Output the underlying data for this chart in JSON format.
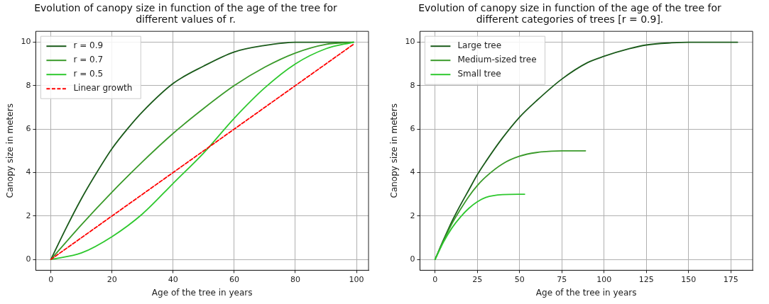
{
  "chart_data": [
    {
      "type": "line",
      "title": "Evolution of canopy size in function of the age of the tree for different values of r.",
      "xlabel": "Age of the tree in years",
      "ylabel": "Canopy size in meters",
      "xlim": [
        -4.95,
        103.95
      ],
      "xticks": [
        0,
        20,
        40,
        60,
        80,
        100
      ],
      "ylim": [
        -0.5,
        10.5
      ],
      "yticks": [
        0,
        2,
        4,
        6,
        8,
        10
      ],
      "grid": true,
      "legend": "top left",
      "series": [
        {
          "name": "r = 0.9",
          "color": "#1a5a1a",
          "x": [
            0,
            5,
            10,
            15,
            20,
            25,
            30,
            40,
            50,
            60,
            70,
            80,
            90,
            99
          ],
          "values": [
            0,
            1.45,
            2.8,
            4.0,
            5.1,
            6.0,
            6.8,
            8.1,
            8.9,
            9.55,
            9.85,
            10,
            10,
            10
          ]
        },
        {
          "name": "r = 0.7",
          "color": "#3a9a2a",
          "x": [
            0,
            10,
            20,
            30,
            40,
            50,
            60,
            70,
            80,
            90,
            99
          ],
          "values": [
            0,
            1.6,
            3.1,
            4.5,
            5.8,
            6.95,
            8.0,
            8.85,
            9.5,
            9.9,
            10
          ]
        },
        {
          "name": "r = 0.5",
          "color": "#2ec82e",
          "x": [
            0,
            10,
            20,
            30,
            40,
            50,
            60,
            70,
            80,
            90,
            99
          ],
          "values": [
            0,
            0.3,
            1.05,
            2.1,
            3.5,
            4.9,
            6.5,
            7.9,
            9.0,
            9.7,
            10
          ]
        },
        {
          "name": "Linear growth",
          "color": "#ff0000",
          "line_style": "dashed",
          "x": [
            0,
            99
          ],
          "values": [
            0,
            9.9
          ]
        }
      ]
    },
    {
      "type": "line",
      "title": "Evolution of canopy size in function of the age of the tree for different categories of trees [r = 0.9].",
      "xlabel": "Age of the tree in years",
      "ylabel": "Canopy size in meters",
      "xlim": [
        -8.95,
        187.95
      ],
      "xticks": [
        0,
        25,
        50,
        75,
        100,
        125,
        150,
        175
      ],
      "ylim": [
        -0.5,
        10.5
      ],
      "yticks": [
        0,
        2,
        4,
        6,
        8,
        10
      ],
      "grid": true,
      "legend": "top left",
      "series": [
        {
          "name": "Large tree",
          "color": "#1a5a1a",
          "x": [
            0,
            5,
            10,
            15,
            20,
            25,
            30,
            40,
            50,
            60,
            75,
            90,
            100,
            115,
            125,
            140,
            150,
            165,
            179
          ],
          "values": [
            0,
            0.9,
            1.75,
            2.5,
            3.2,
            3.9,
            4.5,
            5.6,
            6.55,
            7.3,
            8.3,
            9.05,
            9.35,
            9.7,
            9.87,
            9.97,
            10,
            10,
            10
          ]
        },
        {
          "name": "Medium-sized tree",
          "color": "#3a9a2a",
          "x": [
            0,
            5,
            10,
            15,
            20,
            25,
            30,
            40,
            50,
            60,
            75,
            89
          ],
          "values": [
            0,
            0.85,
            1.65,
            2.3,
            2.9,
            3.4,
            3.8,
            4.4,
            4.75,
            4.92,
            5,
            5
          ]
        },
        {
          "name": "Small tree",
          "color": "#2ec82e",
          "x": [
            0,
            5,
            10,
            15,
            20,
            25,
            30,
            40,
            53
          ],
          "values": [
            0,
            0.8,
            1.45,
            1.95,
            2.35,
            2.65,
            2.85,
            2.98,
            3
          ]
        }
      ]
    }
  ]
}
